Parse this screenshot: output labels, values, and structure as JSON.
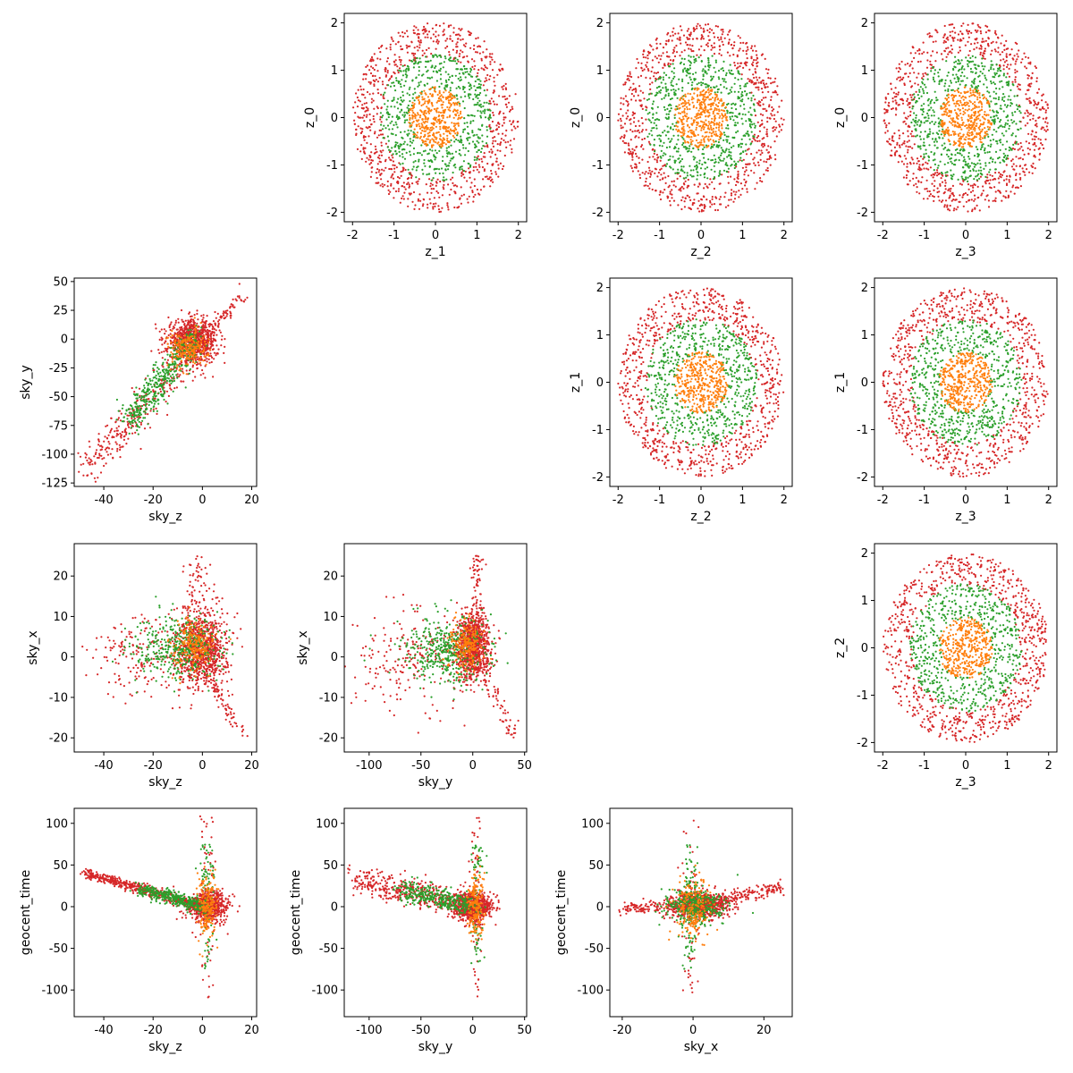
{
  "figure": {
    "type": "scatter-matrix",
    "description_colors": {
      "red": "#d62728",
      "green": "#2ca02c",
      "orange": "#ff7f0e"
    }
  },
  "chart_data": [
    {
      "type": "scatter",
      "id": "z1-z0",
      "xlabel": "z_1",
      "ylabel": "z_0",
      "xlim": [
        -2.2,
        2.2
      ],
      "ylim": [
        -2.2,
        2.2
      ],
      "xticks": [
        -2,
        -1,
        0,
        1,
        2
      ],
      "yticks": [
        -2,
        -1,
        0,
        1,
        2
      ],
      "distribution": "rings",
      "series": [
        {
          "name": "red",
          "radius": [
            1.3,
            2.0
          ],
          "n": 800
        },
        {
          "name": "green",
          "radius": [
            0.6,
            1.35
          ],
          "n": 600
        },
        {
          "name": "orange",
          "radius": [
            0,
            0.65
          ],
          "n": 400
        }
      ]
    },
    {
      "type": "scatter",
      "id": "z2-z0",
      "xlabel": "z_2",
      "ylabel": "z_0",
      "xlim": [
        -2.2,
        2.2
      ],
      "ylim": [
        -2.2,
        2.2
      ],
      "xticks": [
        -2,
        -1,
        0,
        1,
        2
      ],
      "yticks": [
        -2,
        -1,
        0,
        1,
        2
      ],
      "distribution": "rings",
      "series": [
        {
          "name": "red",
          "radius": [
            1.3,
            2.0
          ],
          "n": 800
        },
        {
          "name": "green",
          "radius": [
            0.6,
            1.35
          ],
          "n": 600
        },
        {
          "name": "orange",
          "radius": [
            0,
            0.65
          ],
          "n": 400
        }
      ]
    },
    {
      "type": "scatter",
      "id": "z3-z0",
      "xlabel": "z_3",
      "ylabel": "z_0",
      "xlim": [
        -2.2,
        2.2
      ],
      "ylim": [
        -2.2,
        2.2
      ],
      "xticks": [
        -2,
        -1,
        0,
        1,
        2
      ],
      "yticks": [
        -2,
        -1,
        0,
        1,
        2
      ],
      "distribution": "rings",
      "series": [
        {
          "name": "red",
          "radius": [
            1.3,
            2.0
          ],
          "n": 800
        },
        {
          "name": "green",
          "radius": [
            0.6,
            1.35
          ],
          "n": 600
        },
        {
          "name": "orange",
          "radius": [
            0,
            0.65
          ],
          "n": 400
        }
      ]
    },
    {
      "type": "scatter",
      "id": "skyz-skyy",
      "xlabel": "sky_z",
      "ylabel": "sky_y",
      "xlim": [
        -52,
        22
      ],
      "ylim": [
        -128,
        53
      ],
      "xticks": [
        -40,
        -20,
        0,
        20
      ],
      "yticks": [
        -125,
        -100,
        -75,
        -50,
        -25,
        0,
        25,
        50
      ],
      "distribution": "sky_z_vs_sky_y"
    },
    {
      "type": "scatter",
      "id": "z2-z1",
      "xlabel": "z_2",
      "ylabel": "z_1",
      "xlim": [
        -2.2,
        2.2
      ],
      "ylim": [
        -2.2,
        2.2
      ],
      "xticks": [
        -2,
        -1,
        0,
        1,
        2
      ],
      "yticks": [
        -2,
        -1,
        0,
        1,
        2
      ],
      "distribution": "rings",
      "series": [
        {
          "name": "red",
          "radius": [
            1.3,
            2.0
          ],
          "n": 800
        },
        {
          "name": "green",
          "radius": [
            0.6,
            1.35
          ],
          "n": 600
        },
        {
          "name": "orange",
          "radius": [
            0,
            0.65
          ],
          "n": 400
        }
      ]
    },
    {
      "type": "scatter",
      "id": "z3-z1",
      "xlabel": "z_3",
      "ylabel": "z_1",
      "xlim": [
        -2.2,
        2.2
      ],
      "ylim": [
        -2.2,
        2.2
      ],
      "xticks": [
        -2,
        -1,
        0,
        1,
        2
      ],
      "yticks": [
        -2,
        -1,
        0,
        1,
        2
      ],
      "distribution": "rings",
      "series": [
        {
          "name": "red",
          "radius": [
            1.3,
            2.0
          ],
          "n": 800
        },
        {
          "name": "green",
          "radius": [
            0.6,
            1.35
          ],
          "n": 600
        },
        {
          "name": "orange",
          "radius": [
            0,
            0.65
          ],
          "n": 400
        }
      ]
    },
    {
      "type": "scatter",
      "id": "skyz-skyx",
      "xlabel": "sky_z",
      "ylabel": "sky_x",
      "xlim": [
        -52,
        22
      ],
      "ylim": [
        -23.5,
        28
      ],
      "xticks": [
        -40,
        -20,
        0,
        20
      ],
      "yticks": [
        -20,
        -10,
        0,
        10,
        20
      ],
      "distribution": "sky_z_vs_sky_x"
    },
    {
      "type": "scatter",
      "id": "skyy-skyx",
      "xlabel": "sky_y",
      "ylabel": "sky_x",
      "xlim": [
        -124,
        52
      ],
      "ylim": [
        -23.5,
        28
      ],
      "xticks": [
        -100,
        -50,
        0,
        50
      ],
      "yticks": [
        -20,
        -10,
        0,
        10,
        20
      ],
      "distribution": "sky_y_vs_sky_x"
    },
    {
      "type": "scatter",
      "id": "z3-z2",
      "xlabel": "z_3",
      "ylabel": "z_2",
      "xlim": [
        -2.2,
        2.2
      ],
      "ylim": [
        -2.2,
        2.2
      ],
      "xticks": [
        -2,
        -1,
        0,
        1,
        2
      ],
      "yticks": [
        -2,
        -1,
        0,
        1,
        2
      ],
      "distribution": "rings",
      "series": [
        {
          "name": "red",
          "radius": [
            1.3,
            2.0
          ],
          "n": 800
        },
        {
          "name": "green",
          "radius": [
            0.6,
            1.35
          ],
          "n": 600
        },
        {
          "name": "orange",
          "radius": [
            0,
            0.65
          ],
          "n": 400
        }
      ]
    },
    {
      "type": "scatter",
      "id": "skyz-time",
      "xlabel": "sky_z",
      "ylabel": "geocent_time",
      "xlim": [
        -52,
        22
      ],
      "ylim": [
        -132,
        118
      ],
      "xticks": [
        -40,
        -20,
        0,
        20
      ],
      "yticks": [
        -100,
        -50,
        0,
        50,
        100
      ],
      "distribution": "sky_z_vs_time"
    },
    {
      "type": "scatter",
      "id": "skyy-time",
      "xlabel": "sky_y",
      "ylabel": "geocent_time",
      "xlim": [
        -124,
        52
      ],
      "ylim": [
        -132,
        118
      ],
      "xticks": [
        -100,
        -50,
        0,
        50
      ],
      "yticks": [
        -100,
        -50,
        0,
        50,
        100
      ],
      "distribution": "sky_y_vs_time"
    },
    {
      "type": "scatter",
      "id": "skyx-time",
      "xlabel": "sky_x",
      "ylabel": "geocent_time",
      "xlim": [
        -23.5,
        28
      ],
      "ylim": [
        -132,
        118
      ],
      "xticks": [
        -20,
        0,
        20
      ],
      "yticks": [
        -100,
        -50,
        0,
        50,
        100
      ],
      "distribution": "sky_x_vs_time"
    }
  ]
}
